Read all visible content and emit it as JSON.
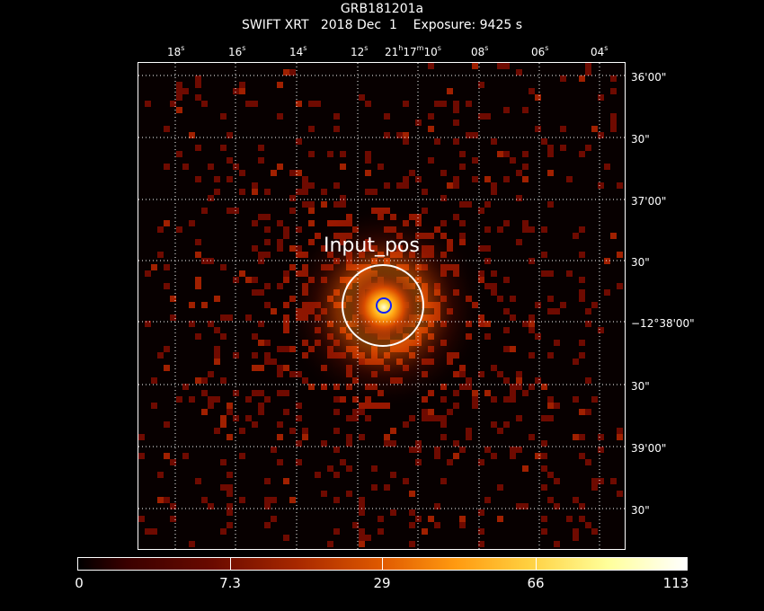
{
  "header": {
    "object": "GRB181201a",
    "line2": "SWIFT XRT   2018 Dec  1    Exposure: 9425 s"
  },
  "source_label": "Input_pos",
  "ra_ticks": [
    {
      "major": "18",
      "unit": "s"
    },
    {
      "major": "16",
      "unit": "s"
    },
    {
      "major": "14",
      "unit": "s"
    },
    {
      "major": "12",
      "unit": "s"
    },
    {
      "major": "21",
      "unit": "h",
      "extra": "17",
      "extra_unit": "m",
      "tail": "10",
      "tail_unit": "s"
    },
    {
      "major": "08",
      "unit": "s"
    },
    {
      "major": "06",
      "unit": "s"
    },
    {
      "major": "04",
      "unit": "s"
    }
  ],
  "dec_ticks": [
    "36'00\"",
    "30\"",
    "37'00\"",
    "30\"",
    "−12°38'00\"",
    "30\"",
    "39'00\"",
    "30\""
  ],
  "colorbar": {
    "labels": [
      "0",
      "7.3",
      "29",
      "66",
      "113"
    ],
    "min": 0,
    "max": 113
  },
  "colors": {
    "background": "#000000",
    "grid": "#ffffff",
    "region_outer": "#ffffff",
    "region_inner": "#1020ff"
  }
}
